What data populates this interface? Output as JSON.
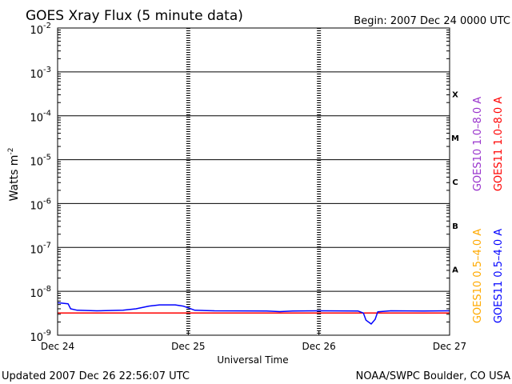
{
  "chart_data": {
    "type": "line",
    "title": "GOES Xray Flux (5 minute data)",
    "begin_label": "Begin:  2007 Dec 24 0000 UTC",
    "xlabel": "Universal Time",
    "ylabel": "Watts m",
    "ylabel_sup": "-2",
    "x_ticks": [
      {
        "day": 0,
        "label": "Dec 24"
      },
      {
        "day": 1,
        "label": "Dec 25"
      },
      {
        "day": 2,
        "label": "Dec 26"
      },
      {
        "day": 3,
        "label": "Dec 27"
      }
    ],
    "xlim_days": [
      0,
      3
    ],
    "ylim_exp": [
      -9,
      -2
    ],
    "y_scale": "log",
    "y_ticks": [
      {
        "exp": -2,
        "base": "10",
        "sup": "-2"
      },
      {
        "exp": -3,
        "base": "10",
        "sup": "-3"
      },
      {
        "exp": -4,
        "base": "10",
        "sup": "-4"
      },
      {
        "exp": -5,
        "base": "10",
        "sup": "-5"
      },
      {
        "exp": -6,
        "base": "10",
        "sup": "-6"
      },
      {
        "exp": -7,
        "base": "10",
        "sup": "-7"
      },
      {
        "exp": -8,
        "base": "10",
        "sup": "-8"
      },
      {
        "exp": -9,
        "base": "10",
        "sup": "-9"
      }
    ],
    "flare_classes": [
      {
        "label": "X",
        "exp": -3.5
      },
      {
        "label": "M",
        "exp": -4.5
      },
      {
        "label": "C",
        "exp": -5.5
      },
      {
        "label": "B",
        "exp": -6.5
      },
      {
        "label": "A",
        "exp": -7.5
      }
    ],
    "legend": [
      {
        "text": "GOES10 1.0–8.0 A",
        "color": "#9933cc"
      },
      {
        "text": "GOES11 1.0–8.0 A",
        "color": "#ff0000"
      },
      {
        "text": "GOES10 0.5–4.0 A",
        "color": "#ffaa00"
      },
      {
        "text": "GOES11 0.5–4.0 A",
        "color": "#0000ff"
      }
    ],
    "grid": "horizontal lines at each decade; dashed vertical day separators",
    "series": [
      {
        "name": "GOES11 1.0–8.0 A",
        "color": "#ff0000",
        "points": [
          [
            0.0,
            3.2e-09
          ],
          [
            3.0,
            3.2e-09
          ]
        ]
      },
      {
        "name": "GOES11 0.5–4.0 A",
        "color": "#0000ff",
        "points": [
          [
            0.0,
            5.5e-09
          ],
          [
            0.08,
            5.2e-09
          ],
          [
            0.1,
            4e-09
          ],
          [
            0.15,
            3.7e-09
          ],
          [
            0.3,
            3.6e-09
          ],
          [
            0.5,
            3.7e-09
          ],
          [
            0.6,
            4e-09
          ],
          [
            0.7,
            4.6e-09
          ],
          [
            0.78,
            4.9e-09
          ],
          [
            0.9,
            4.9e-09
          ],
          [
            0.96,
            4.6e-09
          ],
          [
            1.0,
            4.2e-09
          ],
          [
            1.05,
            3.7e-09
          ],
          [
            1.2,
            3.6e-09
          ],
          [
            1.6,
            3.55e-09
          ],
          [
            1.7,
            3.45e-09
          ],
          [
            1.8,
            3.55e-09
          ],
          [
            2.0,
            3.6e-09
          ],
          [
            2.3,
            3.55e-09
          ],
          [
            2.34,
            3.2e-09
          ],
          [
            2.36,
            2.2e-09
          ],
          [
            2.4,
            1.8e-09
          ],
          [
            2.43,
            2.3e-09
          ],
          [
            2.45,
            3.4e-09
          ],
          [
            2.55,
            3.6e-09
          ],
          [
            2.8,
            3.55e-09
          ],
          [
            3.0,
            3.6e-09
          ]
        ]
      }
    ]
  },
  "footer": {
    "updated": "Updated 2007 Dec 26 22:56:07 UTC",
    "source": "NOAA/SWPC Boulder, CO USA"
  }
}
